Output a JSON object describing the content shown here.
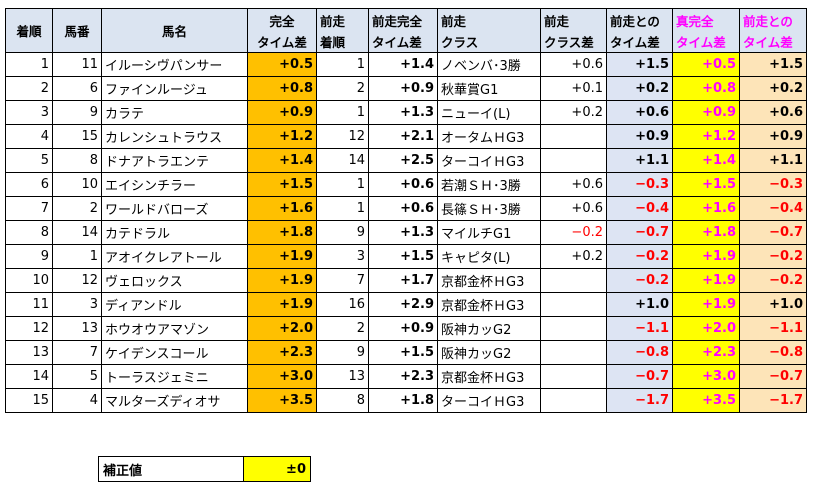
{
  "headers": {
    "rank": "着順",
    "num": "馬番",
    "name": "馬名",
    "gap1": "完全",
    "gap2": "タイム差",
    "prev_rank1": "前走",
    "prev_rank2": "着順",
    "prev_gap1": "前走完全",
    "prev_gap2": "タイム差",
    "prev_class1": "前走",
    "prev_class2": "クラス",
    "class_diff1": "前走",
    "class_diff2": "クラス差",
    "prev_time1": "前走との",
    "prev_time2": "タイム差",
    "true_gap1": "真完全",
    "true_gap2": "タイム差",
    "true_prev1": "前走との",
    "true_prev2": "タイム差"
  },
  "rows": [
    {
      "rank": "1",
      "num": "11",
      "name": "イルーシヴパンサー",
      "gap": "+0.5",
      "prev_rank": "1",
      "prev_gap": "+1.4",
      "prev_class": "ノベンバ･3勝",
      "class_diff": "+0.6",
      "prev_time": "+1.5",
      "true_gap": "+0.5",
      "true_prev": "+1.5"
    },
    {
      "rank": "2",
      "num": "6",
      "name": "ファインルージュ",
      "gap": "+0.8",
      "prev_rank": "2",
      "prev_gap": "+0.9",
      "prev_class": "秋華賞G1",
      "class_diff": "+0.1",
      "prev_time": "+0.2",
      "true_gap": "+0.8",
      "true_prev": "+0.2"
    },
    {
      "rank": "3",
      "num": "9",
      "name": "カラテ",
      "gap": "+0.9",
      "prev_rank": "1",
      "prev_gap": "+1.3",
      "prev_class": "ニューイ(L)",
      "class_diff": "+0.2",
      "prev_time": "+0.6",
      "true_gap": "+0.9",
      "true_prev": "+0.6"
    },
    {
      "rank": "4",
      "num": "15",
      "name": "カレンシュトラウス",
      "gap": "+1.2",
      "prev_rank": "12",
      "prev_gap": "+2.1",
      "prev_class": "オータムＨG3",
      "class_diff": "",
      "prev_time": "+0.9",
      "true_gap": "+1.2",
      "true_prev": "+0.9"
    },
    {
      "rank": "5",
      "num": "8",
      "name": "ドナアトラエンテ",
      "gap": "+1.4",
      "prev_rank": "14",
      "prev_gap": "+2.5",
      "prev_class": "ターコイＨG3",
      "class_diff": "",
      "prev_time": "+1.1",
      "true_gap": "+1.4",
      "true_prev": "+1.1"
    },
    {
      "rank": "6",
      "num": "10",
      "name": "エイシンチラー",
      "gap": "+1.5",
      "prev_rank": "1",
      "prev_gap": "+0.6",
      "prev_class": "若潮ＳＨ･3勝",
      "class_diff": "+0.6",
      "prev_time": "−0.3",
      "true_gap": "+1.5",
      "true_prev": "−0.3"
    },
    {
      "rank": "7",
      "num": "2",
      "name": "ワールドバローズ",
      "gap": "+1.6",
      "prev_rank": "1",
      "prev_gap": "+0.6",
      "prev_class": "長篠ＳＨ･3勝",
      "class_diff": "+0.6",
      "prev_time": "−0.4",
      "true_gap": "+1.6",
      "true_prev": "−0.4"
    },
    {
      "rank": "8",
      "num": "14",
      "name": "カテドラル",
      "gap": "+1.8",
      "prev_rank": "9",
      "prev_gap": "+1.3",
      "prev_class": "マイルチG1",
      "class_diff": "−0.2",
      "prev_time": "−0.7",
      "true_gap": "+1.8",
      "true_prev": "−0.7"
    },
    {
      "rank": "9",
      "num": "1",
      "name": "アオイクレアトール",
      "gap": "+1.9",
      "prev_rank": "3",
      "prev_gap": "+1.5",
      "prev_class": "キャピタ(L)",
      "class_diff": "+0.2",
      "prev_time": "−0.2",
      "true_gap": "+1.9",
      "true_prev": "−0.2"
    },
    {
      "rank": "10",
      "num": "12",
      "name": "ヴェロックス",
      "gap": "+1.9",
      "prev_rank": "7",
      "prev_gap": "+1.7",
      "prev_class": "京都金杯ＨG3",
      "class_diff": "",
      "prev_time": "−0.2",
      "true_gap": "+1.9",
      "true_prev": "−0.2"
    },
    {
      "rank": "11",
      "num": "3",
      "name": "ディアンドル",
      "gap": "+1.9",
      "prev_rank": "16",
      "prev_gap": "+2.9",
      "prev_class": "京都金杯ＨG3",
      "class_diff": "",
      "prev_time": "+1.0",
      "true_gap": "+1.9",
      "true_prev": "+1.0"
    },
    {
      "rank": "12",
      "num": "13",
      "name": "ホウオウアマゾン",
      "gap": "+2.0",
      "prev_rank": "2",
      "prev_gap": "+0.9",
      "prev_class": "阪神カッG2",
      "class_diff": "",
      "prev_time": "−1.1",
      "true_gap": "+2.0",
      "true_prev": "−1.1"
    },
    {
      "rank": "13",
      "num": "7",
      "name": "ケイデンスコール",
      "gap": "+2.3",
      "prev_rank": "9",
      "prev_gap": "+1.5",
      "prev_class": "阪神カッG2",
      "class_diff": "",
      "prev_time": "−0.8",
      "true_gap": "+2.3",
      "true_prev": "−0.8"
    },
    {
      "rank": "14",
      "num": "5",
      "name": "トーラスジェミニ",
      "gap": "+3.0",
      "prev_rank": "13",
      "prev_gap": "+2.3",
      "prev_class": "京都金杯ＨG3",
      "class_diff": "",
      "prev_time": "−0.7",
      "true_gap": "+3.0",
      "true_prev": "−0.7"
    },
    {
      "rank": "15",
      "num": "4",
      "name": "マルターズディオサ",
      "gap": "+3.5",
      "prev_rank": "8",
      "prev_gap": "+1.8",
      "prev_class": "ターコイＨG3",
      "class_diff": "",
      "prev_time": "−1.7",
      "true_gap": "+3.5",
      "true_prev": "−1.7"
    }
  ],
  "correction": {
    "label": "補正値",
    "value": "±0"
  },
  "colors": {
    "header_bg": "#dbe4f1",
    "gap_orange": "#ffc000",
    "true_gap_yellow": "#ffff00",
    "prev_time_lavender": "#dde4f3",
    "true_prev_peach": "#fde4b8",
    "negative_red": "#ff0000",
    "highlight_header_magenta": "#ff00ff"
  }
}
